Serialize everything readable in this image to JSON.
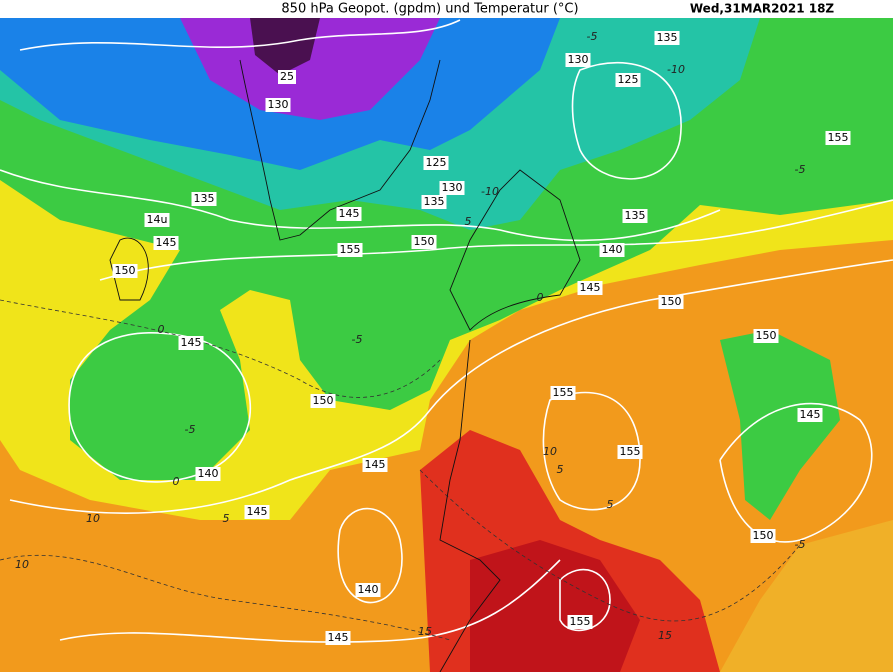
{
  "header": {
    "title": "850 hPa Geopot. (gpdm) und Temperatur (°C)",
    "date": "Wed,31MAR2021 18Z"
  },
  "geopotential_labels": [
    "135",
    "130",
    "125",
    "130",
    "155",
    "125",
    "130",
    "135",
    "135",
    "145",
    "150",
    "155",
    "135",
    "140",
    "14u",
    "145",
    "150",
    "145",
    "150",
    "150",
    "145",
    "150",
    "155",
    "155",
    "145",
    "145",
    "140",
    "145",
    "150",
    "140",
    "155",
    "145",
    "25"
  ],
  "temperature_labels": [
    "-5",
    "-10",
    "-10",
    "-5",
    "0",
    "0",
    "-5",
    "5",
    "5",
    "10",
    "10",
    "15",
    "15",
    "-5",
    "5",
    "-5",
    "0",
    "5",
    "10"
  ]
}
